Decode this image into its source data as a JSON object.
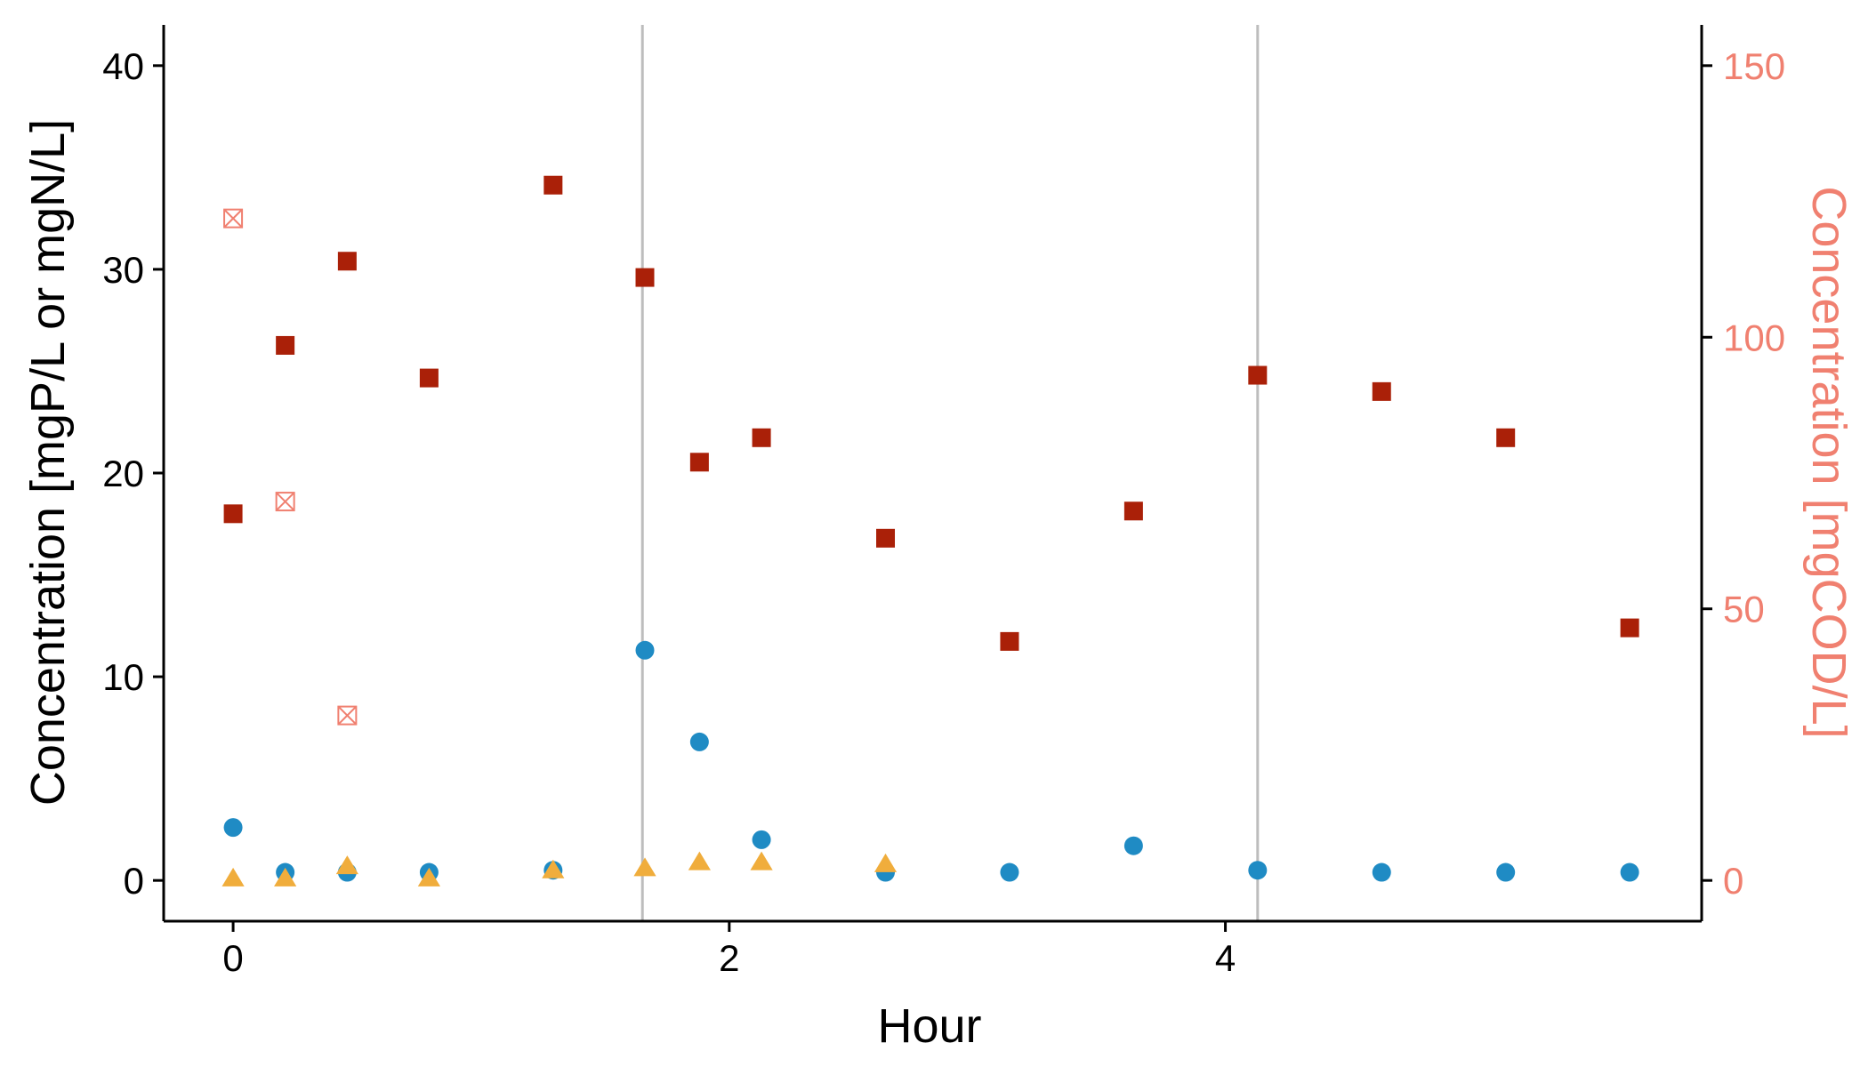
{
  "chart_data": {
    "type": "scatter",
    "xlabel": "Hour",
    "ylabel": "Concentration [mgP/L or mgN/L]",
    "ylabel_right": "Concentration [mgCOD/L]",
    "xlim": [
      -0.28,
      5.92
    ],
    "ylim": [
      -2,
      42
    ],
    "ylim_right": [
      -7.5,
      157.5
    ],
    "x_ticks": [
      0,
      2,
      4
    ],
    "y_ticks": [
      0,
      10,
      20,
      30,
      40
    ],
    "y_ticks_right": [
      0,
      50,
      100,
      150
    ],
    "vertical_lines": [
      1.65,
      4.13
    ],
    "grid": false,
    "legend": "none",
    "colors": {
      "axis": "#000000",
      "right_axis": "#f08070",
      "vline": "#bdbdbd",
      "square": "#aa2008",
      "crossed_square": "#f08070",
      "circle": "#1f8bc4",
      "triangle": "#f0ad3c"
    },
    "series": [
      {
        "marker": "square",
        "axis": "right",
        "x": [
          0,
          0.21,
          0.46,
          0.79,
          1.29,
          1.66,
          1.88,
          2.13,
          2.63,
          3.13,
          3.63,
          4.13,
          4.63,
          5.13,
          5.63
        ],
        "y": [
          67.5,
          98.5,
          114,
          92.5,
          128,
          111,
          77,
          81.5,
          63,
          44,
          68,
          93,
          90,
          81.5,
          46.5
        ]
      },
      {
        "marker": "crossed-square",
        "axis": "left",
        "x": [
          0,
          0.21,
          0.46
        ],
        "y": [
          32.5,
          18.6,
          8.1
        ]
      },
      {
        "marker": "circle",
        "axis": "left",
        "x": [
          0,
          0.21,
          0.46,
          0.79,
          1.29,
          1.66,
          1.88,
          2.13,
          2.63,
          3.13,
          3.63,
          4.13,
          4.63,
          5.13,
          5.63
        ],
        "y": [
          2.6,
          0.4,
          0.4,
          0.4,
          0.5,
          11.3,
          6.8,
          2.0,
          0.4,
          0.4,
          1.7,
          0.5,
          0.4,
          0.4,
          0.4
        ]
      },
      {
        "marker": "triangle",
        "axis": "left",
        "x": [
          0,
          0.21,
          0.46,
          0.79,
          1.29,
          1.66,
          1.88,
          2.13,
          2.63
        ],
        "y": [
          0.1,
          0.1,
          0.7,
          0.1,
          0.5,
          0.6,
          0.9,
          0.9,
          0.8
        ]
      }
    ]
  }
}
